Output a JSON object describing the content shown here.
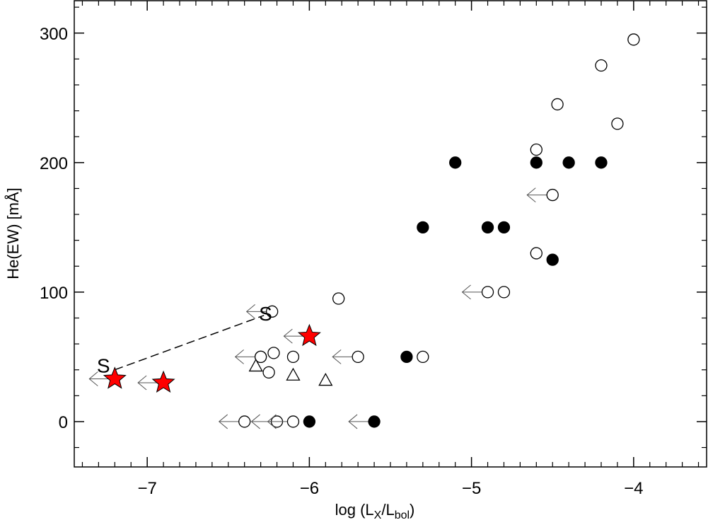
{
  "chart_data": {
    "type": "scatter",
    "xlabel": {
      "main": "log (L",
      "sub1": "X",
      "mid": "/L",
      "sub2": "bol",
      "end": ")"
    },
    "ylabel": "He(EW) [mÅ]",
    "xlim": [
      -7.45,
      -3.55
    ],
    "ylim": [
      -35,
      325
    ],
    "x_ticks": [
      {
        "value": -7,
        "label": "−7"
      },
      {
        "value": -6,
        "label": "−6"
      },
      {
        "value": -5,
        "label": "−5"
      },
      {
        "value": -4,
        "label": "−4"
      }
    ],
    "y_ticks": [
      {
        "value": 0,
        "label": "0"
      },
      {
        "value": 100,
        "label": "100"
      },
      {
        "value": 200,
        "label": "200"
      },
      {
        "value": 300,
        "label": "300"
      }
    ],
    "colors": {
      "filled": "#000000",
      "open": "#ffffff",
      "star": "#ff0000",
      "axis": "#000000"
    },
    "series": [
      {
        "marker": "open-circle",
        "points": [
          {
            "x": -4.0,
            "y": 295
          },
          {
            "x": -4.2,
            "y": 275
          },
          {
            "x": -4.47,
            "y": 245
          },
          {
            "x": -4.1,
            "y": 230
          },
          {
            "x": -4.6,
            "y": 210
          },
          {
            "x": -4.6,
            "y": 130
          },
          {
            "x": -4.8,
            "y": 100
          },
          {
            "x": -5.82,
            "y": 95
          },
          {
            "x": -6.22,
            "y": 53
          },
          {
            "x": -6.1,
            "y": 50
          },
          {
            "x": -5.3,
            "y": 50
          },
          {
            "x": -6.25,
            "y": 38
          },
          {
            "x": -6.3,
            "y": 50
          }
        ]
      },
      {
        "marker": "open-circle-upper-limit",
        "points": [
          {
            "x": -4.5,
            "y": 175
          },
          {
            "x": -4.9,
            "y": 100
          },
          {
            "x": -6.23,
            "y": 85
          },
          {
            "x": -5.7,
            "y": 50
          },
          {
            "x": -6.3,
            "y": 50
          },
          {
            "x": -6.2,
            "y": 0
          },
          {
            "x": -6.1,
            "y": 0
          },
          {
            "x": -6.4,
            "y": 0
          }
        ]
      },
      {
        "marker": "filled-circle",
        "points": [
          {
            "x": -5.1,
            "y": 200
          },
          {
            "x": -4.6,
            "y": 200
          },
          {
            "x": -4.4,
            "y": 200
          },
          {
            "x": -4.2,
            "y": 200
          },
          {
            "x": -5.3,
            "y": 150
          },
          {
            "x": -4.9,
            "y": 150
          },
          {
            "x": -4.8,
            "y": 150
          },
          {
            "x": -4.5,
            "y": 125
          },
          {
            "x": -5.4,
            "y": 50
          },
          {
            "x": -6.0,
            "y": 0
          }
        ]
      },
      {
        "marker": "filled-circle-upper-limit",
        "points": [
          {
            "x": -5.6,
            "y": 0
          }
        ]
      },
      {
        "marker": "open-triangle",
        "points": [
          {
            "x": -6.33,
            "y": 43
          },
          {
            "x": -6.1,
            "y": 36
          },
          {
            "x": -5.9,
            "y": 32
          }
        ]
      },
      {
        "marker": "red-star-upper-limit",
        "points": [
          {
            "x": -7.2,
            "y": 33
          },
          {
            "x": -6.9,
            "y": 30
          },
          {
            "x": -6.0,
            "y": 66
          }
        ]
      }
    ],
    "annotations": [
      {
        "text": "S",
        "x": -7.27,
        "y": 38
      },
      {
        "text": "S",
        "x": -6.27,
        "y": 78
      }
    ],
    "connector": {
      "style": "dashed",
      "from": {
        "x": -7.2,
        "y": 40
      },
      "to": {
        "x": -6.28,
        "y": 82
      }
    }
  }
}
